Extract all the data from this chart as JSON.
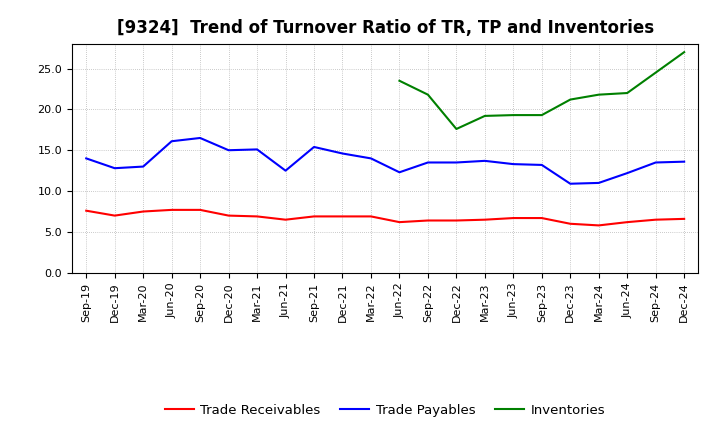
{
  "title": "[9324]  Trend of Turnover Ratio of TR, TP and Inventories",
  "x_labels": [
    "Sep-19",
    "Dec-19",
    "Mar-20",
    "Jun-20",
    "Sep-20",
    "Dec-20",
    "Mar-21",
    "Jun-21",
    "Sep-21",
    "Dec-21",
    "Mar-22",
    "Jun-22",
    "Sep-22",
    "Dec-22",
    "Mar-23",
    "Jun-23",
    "Sep-23",
    "Dec-23",
    "Mar-24",
    "Jun-24",
    "Sep-24",
    "Dec-24"
  ],
  "trade_receivables": [
    7.6,
    7.0,
    7.5,
    7.7,
    7.7,
    7.0,
    6.9,
    6.5,
    6.9,
    6.9,
    6.9,
    6.2,
    6.4,
    6.4,
    6.5,
    6.7,
    6.7,
    6.0,
    5.8,
    6.2,
    6.5,
    6.6
  ],
  "trade_payables": [
    14.0,
    12.8,
    13.0,
    16.1,
    16.5,
    15.0,
    15.1,
    12.5,
    15.4,
    14.6,
    14.0,
    12.3,
    13.5,
    13.5,
    13.7,
    13.3,
    13.2,
    10.9,
    11.0,
    12.2,
    13.5,
    13.6
  ],
  "inventories": [
    null,
    null,
    null,
    null,
    null,
    null,
    null,
    null,
    null,
    null,
    null,
    23.5,
    21.8,
    17.6,
    19.2,
    19.3,
    19.3,
    21.2,
    21.8,
    22.0,
    24.5,
    27.0
  ],
  "ylim": [
    0.0,
    28.0
  ],
  "yticks": [
    0.0,
    5.0,
    10.0,
    15.0,
    20.0,
    25.0
  ],
  "tr_color": "#FF0000",
  "tp_color": "#0000FF",
  "inv_color": "#008000",
  "bg_color": "#FFFFFF",
  "plot_bg_color": "#FFFFFF",
  "grid_color": "#999999",
  "title_fontsize": 12,
  "legend_fontsize": 9.5,
  "tick_fontsize": 8
}
